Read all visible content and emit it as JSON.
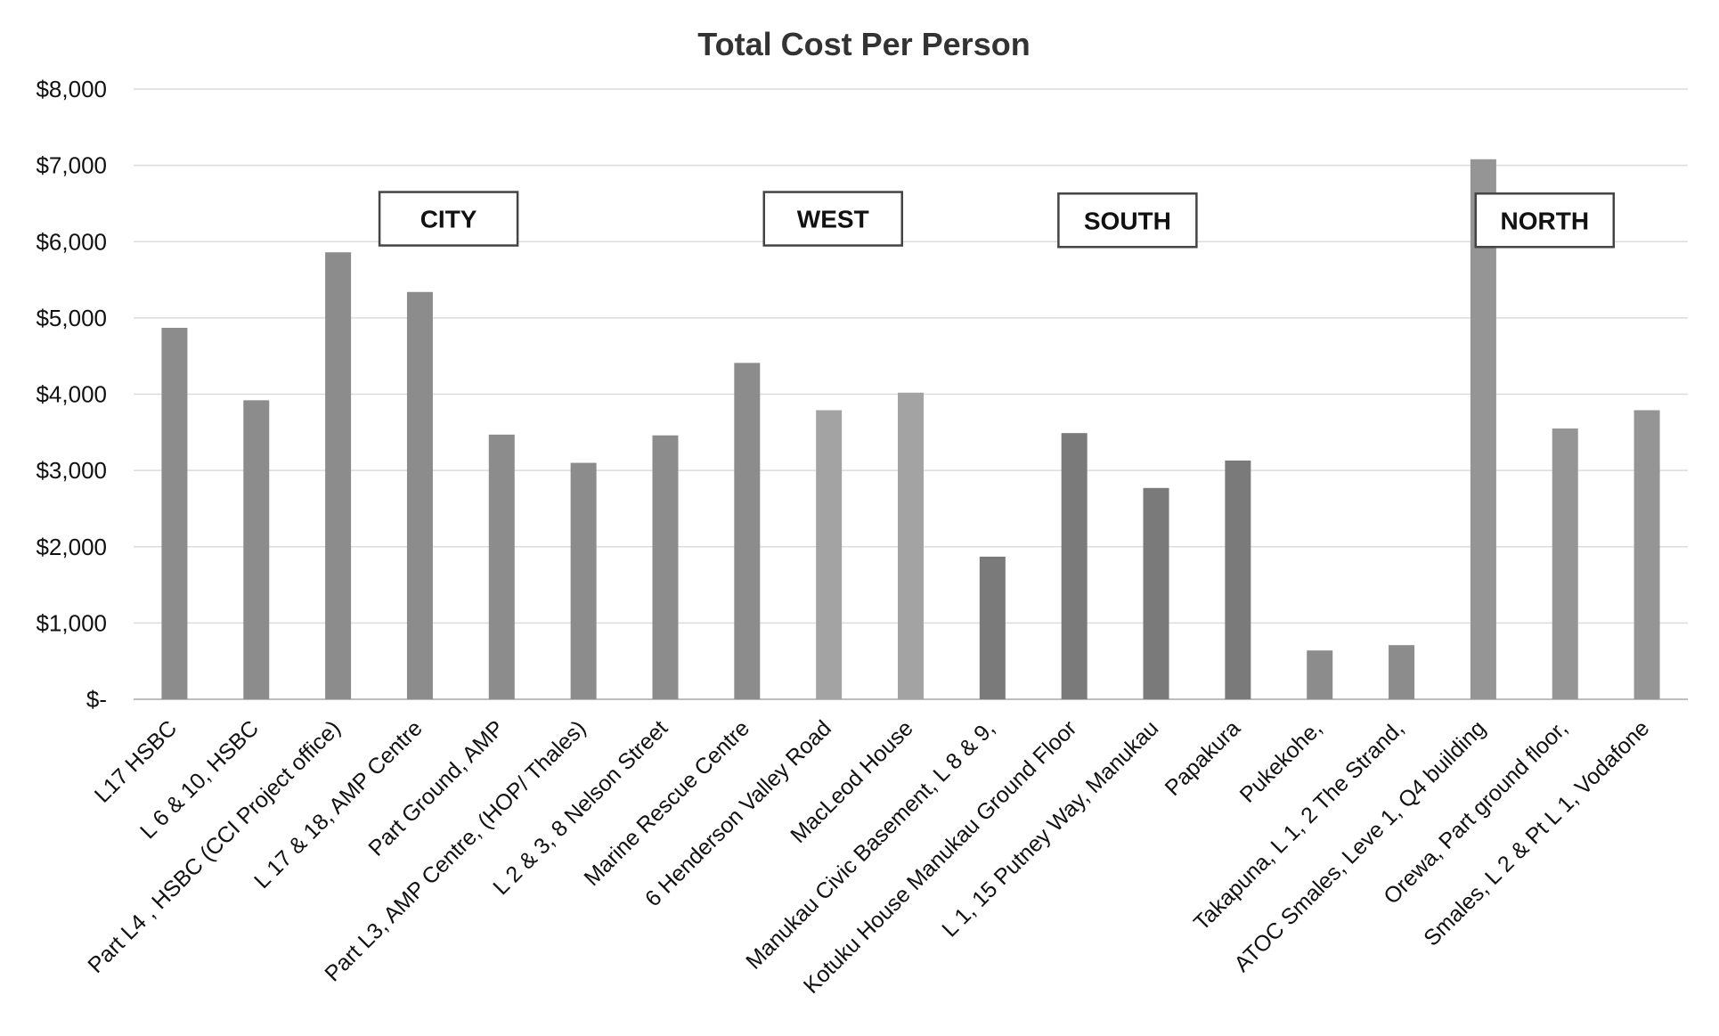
{
  "chart_data": {
    "type": "bar",
    "title": "Total Cost Per Person",
    "xlabel": "",
    "ylabel": "",
    "ylim": [
      0,
      8000
    ],
    "yticks": [
      0,
      1000,
      2000,
      3000,
      4000,
      5000,
      6000,
      7000,
      8000
    ],
    "ytick_labels": [
      "$-",
      "$1,000",
      "$2,000",
      "$3,000",
      "$4,000",
      "$5,000",
      "$6,000",
      "$7,000",
      "$8,000"
    ],
    "grid": true,
    "legend": "none",
    "categories": [
      "L17  HSBC",
      "L 6 & 10, HSBC",
      "Part L4 , HSBC (CCI Project office)",
      "L 17 & 18, AMP Centre",
      "Part Ground, AMP",
      "Part L3, AMP Centre, (HOP/ Thales)",
      "L 2 & 3, 8 Nelson Street",
      "Marine Rescue Centre",
      "6 Henderson Valley Road",
      "MacLeod House",
      "Manukau Civic  Basement, L 8 & 9,",
      "Kotuku House Manukau Ground Floor",
      "L 1, 15 Putney Way, Manukau",
      "Papakura",
      "Pukekohe,",
      "Takapuna, L 1, 2 The Strand,",
      "ATOC Smales,  Leve 1, Q4 building",
      "Orewa, Part ground floor,",
      "Smales, L 2 & Pt L 1, Vodafone"
    ],
    "values": [
      4870,
      3920,
      5860,
      5340,
      3470,
      3100,
      3460,
      4410,
      3790,
      4020,
      1870,
      3490,
      2770,
      3130,
      640,
      710,
      7080,
      3550,
      3790
    ],
    "bar_colors": [
      "#8c8c8c",
      "#8c8c8c",
      "#8c8c8c",
      "#8c8c8c",
      "#8c8c8c",
      "#8c8c8c",
      "#8c8c8c",
      "#8c8c8c",
      "#a3a3a3",
      "#a3a3a3",
      "#7a7a7a",
      "#7a7a7a",
      "#7a7a7a",
      "#7a7a7a",
      "#8c8c8c",
      "#8c8c8c",
      "#959595",
      "#959595",
      "#959595"
    ],
    "annotations": [
      {
        "text": "CITY",
        "x_category_index": 3.85,
        "y_value": 6300
      },
      {
        "text": "WEST",
        "x_category_index": 8.55,
        "y_value": 6300
      },
      {
        "text": "SOUTH",
        "x_category_index": 12.15,
        "y_value": 6280
      },
      {
        "text": "NORTH",
        "x_category_index": 17.25,
        "y_value": 6280
      }
    ]
  }
}
